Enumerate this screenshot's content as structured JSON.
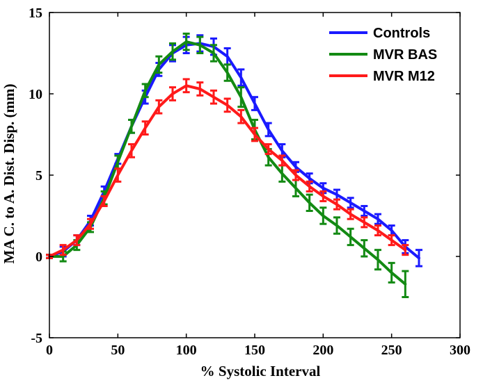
{
  "chart_data": {
    "type": "line",
    "title": "",
    "xlabel": "% Systolic Interval",
    "ylabel": "MA C. to A. Dist. Disp. (mm)",
    "xlim": [
      0,
      300
    ],
    "ylim": [
      -5,
      15
    ],
    "xticks": [
      "0",
      "50",
      "100",
      "150",
      "200",
      "250",
      "300"
    ],
    "yticks": [
      "-5",
      "0",
      "5",
      "10",
      "15"
    ],
    "grid": false,
    "legend_position": "top-right",
    "series": [
      {
        "name": "Controls",
        "color": "#1a1aff",
        "x": [
          0,
          10,
          20,
          30,
          40,
          50,
          60,
          70,
          80,
          90,
          100,
          110,
          120,
          130,
          140,
          150,
          160,
          170,
          180,
          190,
          200,
          210,
          220,
          230,
          240,
          250,
          260,
          270
        ],
        "y": [
          0.0,
          0.3,
          1.0,
          2.2,
          4.0,
          6.0,
          8.0,
          9.8,
          11.5,
          12.5,
          13.0,
          13.1,
          12.9,
          12.3,
          11.0,
          9.4,
          7.8,
          6.5,
          5.5,
          4.8,
          4.2,
          3.8,
          3.3,
          2.8,
          2.3,
          1.6,
          0.6,
          -0.1
        ],
        "err": [
          0.1,
          0.3,
          0.3,
          0.3,
          0.3,
          0.3,
          0.4,
          0.4,
          0.4,
          0.5,
          0.5,
          0.5,
          0.5,
          0.5,
          0.5,
          0.4,
          0.4,
          0.4,
          0.3,
          0.3,
          0.3,
          0.3,
          0.3,
          0.3,
          0.3,
          0.3,
          0.4,
          0.5
        ]
      },
      {
        "name": "MVR BAS",
        "color": "#138a13",
        "x": [
          0,
          10,
          20,
          30,
          40,
          50,
          60,
          70,
          80,
          90,
          100,
          110,
          120,
          130,
          140,
          150,
          160,
          170,
          180,
          190,
          200,
          210,
          220,
          230,
          240,
          250,
          260
        ],
        "y": [
          0.0,
          0.0,
          0.7,
          1.8,
          3.6,
          5.8,
          8.0,
          10.2,
          11.8,
          12.6,
          13.2,
          13.0,
          12.5,
          11.3,
          9.8,
          7.8,
          6.1,
          5.1,
          4.2,
          3.3,
          2.5,
          1.9,
          1.2,
          0.5,
          -0.2,
          -1.0,
          -1.7
        ],
        "err": [
          0.1,
          0.3,
          0.3,
          0.3,
          0.4,
          0.4,
          0.4,
          0.4,
          0.5,
          0.5,
          0.5,
          0.5,
          0.5,
          0.5,
          0.6,
          0.6,
          0.5,
          0.5,
          0.5,
          0.5,
          0.5,
          0.5,
          0.5,
          0.5,
          0.6,
          0.6,
          0.8
        ]
      },
      {
        "name": "MVR M12",
        "color": "#ff1a1a",
        "x": [
          0,
          10,
          20,
          30,
          40,
          50,
          60,
          70,
          80,
          90,
          100,
          110,
          120,
          130,
          140,
          150,
          160,
          170,
          180,
          190,
          200,
          210,
          220,
          230,
          240,
          250,
          260
        ],
        "y": [
          0.0,
          0.4,
          1.0,
          2.0,
          3.4,
          5.0,
          6.5,
          7.9,
          9.2,
          10.0,
          10.5,
          10.3,
          9.8,
          9.3,
          8.6,
          7.5,
          6.6,
          5.9,
          5.0,
          4.3,
          3.7,
          3.2,
          2.6,
          2.1,
          1.6,
          1.0,
          0.4
        ],
        "err": [
          0.1,
          0.3,
          0.3,
          0.3,
          0.3,
          0.4,
          0.4,
          0.4,
          0.4,
          0.4,
          0.4,
          0.4,
          0.4,
          0.4,
          0.4,
          0.4,
          0.3,
          0.3,
          0.3,
          0.3,
          0.3,
          0.3,
          0.3,
          0.3,
          0.3,
          0.3,
          0.3
        ]
      }
    ]
  }
}
